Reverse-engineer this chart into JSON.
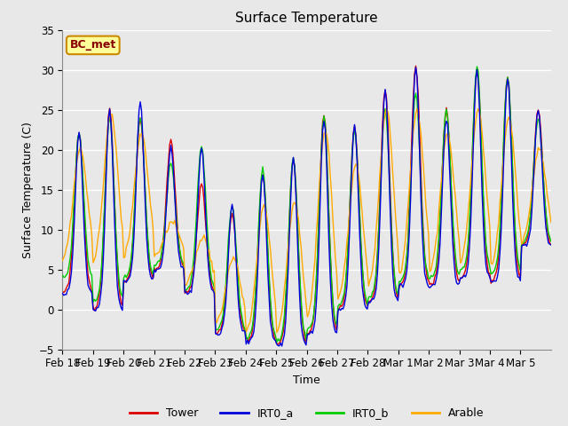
{
  "title": "Surface Temperature",
  "ylabel": "Surface Temperature (C)",
  "xlabel": "Time",
  "annotation": "BC_met",
  "ylim": [
    -5,
    35
  ],
  "yticks": [
    -5,
    0,
    5,
    10,
    15,
    20,
    25,
    30,
    35
  ],
  "series_colors": {
    "Tower": "#dd0000",
    "IRT0_a": "#0000dd",
    "IRT0_b": "#00cc00",
    "Arable": "#ffaa00"
  },
  "legend_entries": [
    "Tower",
    "IRT0_a",
    "IRT0_b",
    "Arable"
  ],
  "x_tick_labels": [
    "Feb 18",
    "Feb 19",
    "Feb 20",
    "Feb 21",
    "Feb 22",
    "Feb 23",
    "Feb 24",
    "Feb 25",
    "Feb 26",
    "Feb 27",
    "Feb 28",
    "Mar 1",
    "Mar 2",
    "Mar 3",
    "Mar 4",
    "Mar 5"
  ],
  "axes_bg_color": "#e8e8e8",
  "fig_bg_color": "#e8e8e8",
  "grid_color": "#ffffff",
  "annotation_bg": "#ffff99",
  "annotation_border": "#cc8800",
  "annotation_text_color": "#880000",
  "linewidth": 1.0,
  "n_days": 16,
  "hours_per_day": 24,
  "day_peaks_tower": [
    22,
    25,
    24,
    21,
    15.5,
    12,
    17,
    19,
    24.5,
    23,
    27.5,
    30.5,
    25,
    30,
    29,
    25
  ],
  "day_mins_tower": [
    2,
    0,
    3.5,
    5,
    2,
    -3,
    -4,
    -4.5,
    -3,
    0,
    1,
    3,
    3,
    4,
    3.5,
    8
  ],
  "day_peaks_irt0a": [
    22,
    25,
    26,
    20.5,
    20,
    13,
    17,
    19,
    24,
    23,
    27.5,
    30.5,
    24,
    30,
    29,
    25
  ],
  "day_mins_irt0a": [
    2,
    0,
    3.5,
    5,
    2,
    -3,
    -4,
    -4.5,
    -3,
    0,
    1,
    3,
    3,
    4,
    3.5,
    8
  ],
  "day_peaks_irt0b": [
    22,
    24,
    24,
    18.5,
    20.5,
    13,
    17.5,
    19,
    24,
    22.5,
    25,
    27,
    25,
    30.5,
    29,
    24
  ],
  "day_mins_irt0b": [
    4,
    1,
    4,
    5.5,
    2.5,
    -2.5,
    -3.5,
    -4,
    -2.5,
    0.5,
    1.5,
    3.5,
    4,
    5,
    4.5,
    8.5
  ],
  "day_peaks_arable": [
    20,
    24.5,
    22,
    11,
    9,
    6.5,
    13,
    13.5,
    22.5,
    18,
    25,
    25,
    22,
    25,
    24,
    20
  ],
  "day_mins_arable": [
    5.5,
    5,
    6,
    6.5,
    3,
    -2,
    -3.5,
    -3.5,
    -2,
    0.5,
    2,
    3.5,
    4,
    5,
    4.5,
    8
  ]
}
